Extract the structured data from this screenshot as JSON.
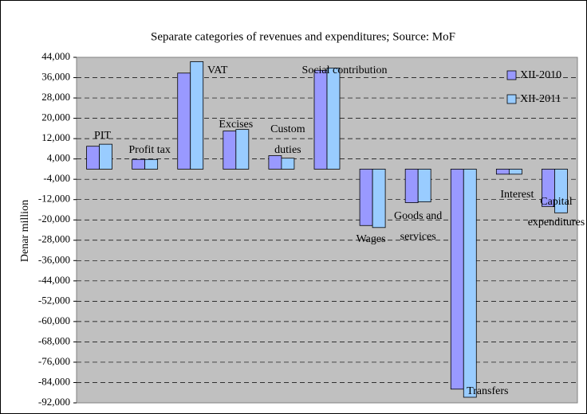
{
  "chart_data": {
    "type": "bar",
    "title": "Separate categories of revenues and expenditures; Source: MoF",
    "y_label": "Denar million",
    "categories": [
      "PIT",
      "Profit tax",
      "VAT",
      "Excises",
      "Custom duties",
      "Social contribution",
      "Wages",
      "Goods and services",
      "Transfers",
      "Interest",
      "Capital expenditures"
    ],
    "series": [
      {
        "name": "XII-2010",
        "color": "#9999ff",
        "values": [
          9000,
          3800,
          37800,
          15000,
          5300,
          38900,
          -22200,
          -13200,
          -86600,
          -2000,
          -14700
        ]
      },
      {
        "name": "XII-2011",
        "color": "#99ccff",
        "values": [
          9800,
          3800,
          42300,
          15600,
          4300,
          39800,
          -23000,
          -12900,
          -89800,
          -2000,
          -17200
        ]
      }
    ],
    "ylim": [
      -92000,
      44000
    ],
    "yticks": [
      {
        "value": 44000,
        "label": "44,000"
      },
      {
        "value": 36000,
        "label": "36,000"
      },
      {
        "value": 28000,
        "label": "28,000"
      },
      {
        "value": 20000,
        "label": "20,000"
      },
      {
        "value": 12000,
        "label": "12,000"
      },
      {
        "value": 4000,
        "label": "4,000"
      },
      {
        "value": -4000,
        "label": "-4,000"
      },
      {
        "value": -12000,
        "label": "-12,000"
      },
      {
        "value": -20000,
        "label": "-20,000"
      },
      {
        "value": -28000,
        "label": "-28,000"
      },
      {
        "value": -36000,
        "label": "-36,000"
      },
      {
        "value": -44000,
        "label": "-44,000"
      },
      {
        "value": -52000,
        "label": "-52,000"
      },
      {
        "value": -60000,
        "label": "-60,000"
      },
      {
        "value": -68000,
        "label": "-68,000"
      },
      {
        "value": -76000,
        "label": "-76,000"
      },
      {
        "value": -84000,
        "label": "-84,000"
      },
      {
        "value": -92000,
        "label": "-92,000"
      }
    ],
    "grid": true,
    "legend": "top-right"
  }
}
